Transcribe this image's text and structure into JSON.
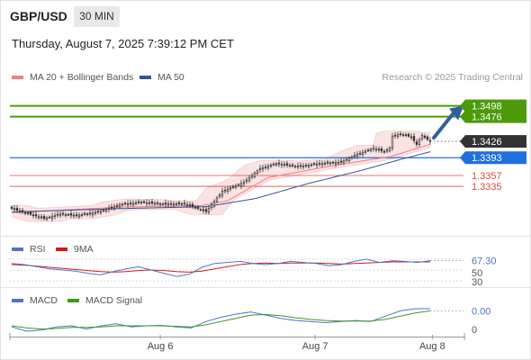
{
  "header": {
    "symbol": "GBP/USD",
    "timeframe": "30 MIN",
    "datetime": "Thursday, August 7, 2025 7:39:12 PM CET",
    "credit": "Research © 2025 Trading Central"
  },
  "legend": {
    "ma20": "MA 20 + Bollinger Bands",
    "ma50": "MA 50",
    "rsi": "RSI",
    "rsi_ma": "9MA",
    "macd": "MACD",
    "macd_signal": "MACD Signal"
  },
  "colors": {
    "ma20": "#f08080",
    "ma50": "#2f5597",
    "bands": "#fbe0e0",
    "resistance": "#4c9a0a",
    "pivot": "#1f6fe0",
    "support": "#d84a4a",
    "price_tag": "#333333",
    "arrow": "#2f5f9e",
    "rsi": "#4f74c9",
    "rsi_ma": "#d01c1c",
    "macd": "#4f74c9",
    "macd_signal": "#3a9a1a"
  },
  "chart_data": [
    {
      "type": "candlestick",
      "title": "GBP/USD 30 MIN",
      "ylim": [
        1.3235,
        1.353
      ],
      "x_ticks": [
        "Aug 6",
        "Aug 7",
        "Aug 8"
      ],
      "levels": [
        {
          "label": "1.3498",
          "value": 1.3498,
          "kind": "resistance"
        },
        {
          "label": "1.3476",
          "value": 1.3476,
          "kind": "resistance"
        },
        {
          "label": "1.3426",
          "value": 1.3426,
          "kind": "last"
        },
        {
          "label": "1.3393",
          "value": 1.3393,
          "kind": "pivot"
        },
        {
          "label": "1.3357",
          "value": 1.3357,
          "kind": "support"
        },
        {
          "label": "1.3335",
          "value": 1.3335,
          "kind": "support"
        }
      ],
      "close_anchors": [
        [
          0,
          1.329
        ],
        [
          6,
          1.328
        ],
        [
          12,
          1.327
        ],
        [
          18,
          1.3279
        ],
        [
          24,
          1.3276
        ],
        [
          32,
          1.3283
        ],
        [
          40,
          1.3298
        ],
        [
          48,
          1.3303
        ],
        [
          56,
          1.3299
        ],
        [
          64,
          1.33
        ],
        [
          72,
          1.3284
        ],
        [
          78,
          1.3325
        ],
        [
          86,
          1.3343
        ],
        [
          92,
          1.3371
        ],
        [
          98,
          1.3381
        ],
        [
          106,
          1.3375
        ],
        [
          114,
          1.3381
        ],
        [
          122,
          1.3384
        ],
        [
          128,
          1.34
        ],
        [
          134,
          1.3412
        ],
        [
          138,
          1.3405
        ],
        [
          140,
          1.3413
        ],
        [
          141,
          1.3436
        ],
        [
          144,
          1.3441
        ],
        [
          148,
          1.3435
        ],
        [
          150,
          1.342
        ],
        [
          152,
          1.3438
        ],
        [
          155,
          1.3426
        ]
      ],
      "ma50_anchors": [
        [
          0,
          1.3283
        ],
        [
          40,
          1.329
        ],
        [
          72,
          1.3294
        ],
        [
          90,
          1.331
        ],
        [
          110,
          1.3341
        ],
        [
          130,
          1.3368
        ],
        [
          145,
          1.3391
        ],
        [
          155,
          1.3405
        ]
      ],
      "ma20_anchors": [
        [
          0,
          1.3282
        ],
        [
          40,
          1.3293
        ],
        [
          70,
          1.3296
        ],
        [
          80,
          1.3306
        ],
        [
          95,
          1.3353
        ],
        [
          120,
          1.3378
        ],
        [
          140,
          1.3395
        ],
        [
          155,
          1.342
        ]
      ]
    },
    {
      "type": "line",
      "title": "RSI",
      "ylim": [
        30,
        70
      ],
      "y_ticks": [
        "67.30",
        "50",
        "30"
      ],
      "series": [
        {
          "name": "RSI",
          "values": [
            62,
            60,
            56,
            52,
            50,
            48,
            44,
            41,
            47,
            52,
            56,
            50,
            44,
            38,
            42,
            55,
            62,
            64,
            66,
            62,
            60,
            62,
            66,
            64,
            62,
            58,
            60,
            66,
            70,
            64,
            67,
            66,
            64,
            67.3
          ]
        },
        {
          "name": "9MA",
          "values": [
            60,
            59,
            57,
            55,
            53,
            51,
            49,
            47,
            46,
            47,
            49,
            50,
            49,
            47,
            46,
            48,
            52,
            56,
            60,
            62,
            63,
            62,
            63,
            63,
            63,
            62,
            61,
            62,
            63,
            64,
            65,
            65,
            65,
            65
          ]
        }
      ]
    },
    {
      "type": "line",
      "title": "MACD",
      "y_ticks": [
        "0.00",
        "0"
      ],
      "series": [
        {
          "name": "MACD",
          "values": [
            -0.0004,
            -0.0012,
            -0.001,
            -0.0004,
            -0.0002,
            -0.0008,
            -0.0002,
            0.0002,
            -0.0004,
            -0.0002,
            -0.0001,
            -0.0004,
            -0.0006,
            0.0006,
            0.0014,
            0.002,
            0.0024,
            0.0018,
            0.0012,
            0.0008,
            0.0006,
            0.0004,
            0.0006,
            0.0008,
            0.0006,
            0.0016,
            0.0026,
            0.003,
            0.003
          ]
        },
        {
          "name": "MACD Signal",
          "values": [
            -0.0002,
            -0.0006,
            -0.0008,
            -0.0007,
            -0.0005,
            -0.0005,
            -0.0004,
            -0.0002,
            -0.0002,
            -0.0002,
            -0.0002,
            -0.0003,
            -0.0004,
            0.0,
            0.0006,
            0.0012,
            0.0018,
            0.0019,
            0.0017,
            0.0013,
            0.001,
            0.0008,
            0.0007,
            0.0007,
            0.0007,
            0.001,
            0.0016,
            0.0022,
            0.0026
          ]
        }
      ]
    }
  ]
}
